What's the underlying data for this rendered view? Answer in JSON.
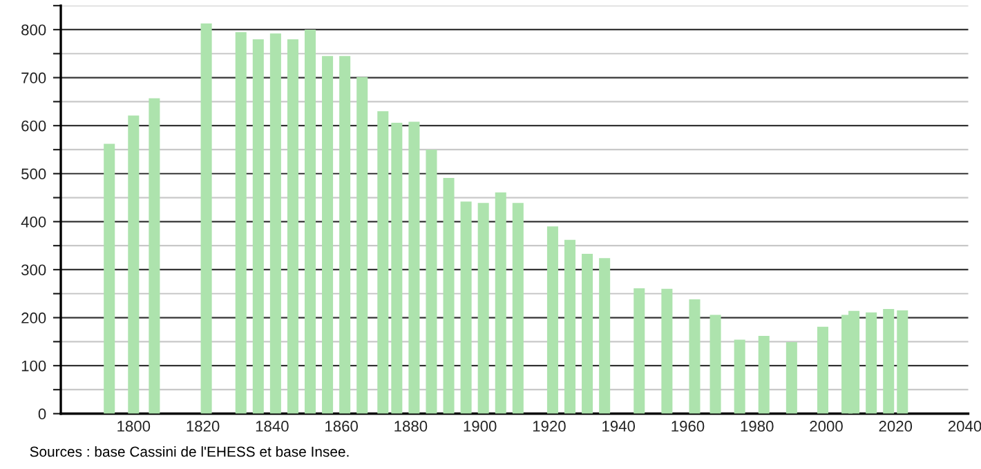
{
  "chart_data": {
    "type": "bar",
    "x": [
      1793,
      1800,
      1806,
      1821,
      1831,
      1836,
      1841,
      1846,
      1851,
      1856,
      1861,
      1866,
      1872,
      1876,
      1881,
      1886,
      1891,
      1896,
      1901,
      1906,
      1911,
      1921,
      1926,
      1931,
      1936,
      1946,
      1954,
      1962,
      1968,
      1975,
      1982,
      1990,
      1999,
      2006,
      2008,
      2013,
      2018,
      2022
    ],
    "values": [
      562,
      621,
      657,
      813,
      795,
      780,
      792,
      780,
      800,
      745,
      745,
      701,
      630,
      606,
      608,
      550,
      491,
      442,
      439,
      461,
      439,
      390,
      362,
      333,
      324,
      261,
      260,
      238,
      206,
      154,
      162,
      149,
      181,
      206,
      214,
      211,
      218,
      215
    ],
    "color": "#ade3ad",
    "xlim": [
      1779,
      2041
    ],
    "xticks": [
      1800,
      1820,
      1840,
      1860,
      1880,
      1900,
      1920,
      1940,
      1960,
      1980,
      2000,
      2020,
      2040
    ],
    "ylim": [
      0,
      850
    ],
    "yticks": [
      0,
      {
        "value": 50,
        "label": null
      },
      100,
      {
        "value": 150,
        "label": null
      },
      200,
      {
        "value": 250,
        "label": null
      },
      300,
      {
        "value": 350,
        "label": null
      },
      400,
      {
        "value": 450,
        "label": null
      },
      500,
      {
        "value": 550,
        "label": null
      },
      600,
      {
        "value": 650,
        "label": null
      },
      700,
      {
        "value": 750,
        "label": null
      },
      800,
      {
        "value": 850,
        "label": null
      }
    ],
    "grid": "y",
    "annotations": [
      "Sources : base Cassini de l'EHESS et base Insee."
    ]
  }
}
